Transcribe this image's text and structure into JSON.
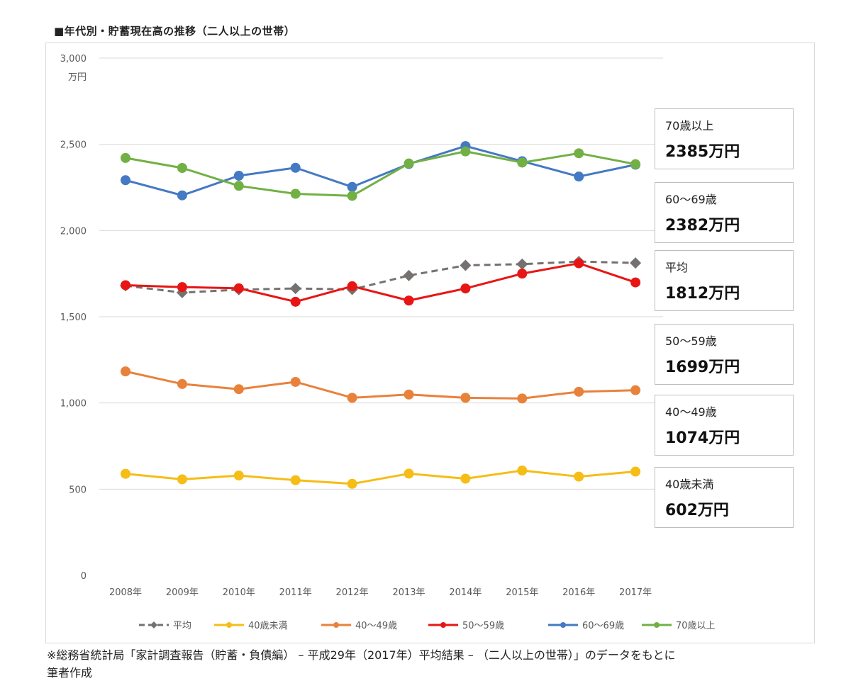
{
  "title": "■年代別・貯蓄現在高の推移（二人以上の世帯）",
  "chart_data": {
    "type": "line",
    "title": "■年代別・貯蓄現在高の推移（二人以上の世帯）",
    "ylabel": "万円",
    "ylim": [
      0,
      3000
    ],
    "yticks": [
      "0",
      "500",
      "1,000",
      "1,500",
      "2,000",
      "2,500",
      "3,000"
    ],
    "ytick_values": [
      0,
      500,
      1000,
      1500,
      2000,
      2500,
      3000
    ],
    "categories": [
      "2008年",
      "2009年",
      "2010年",
      "2011年",
      "2012年",
      "2013年",
      "2014年",
      "2015年",
      "2016年",
      "2017年"
    ],
    "grid": true,
    "legend_position": "bottom",
    "series": [
      {
        "name": "平均",
        "color": "#767171",
        "dashed": true,
        "marker": "diamond",
        "values": [
          1680,
          1640,
          1657,
          1664,
          1658,
          1739,
          1798,
          1805,
          1820,
          1812
        ]
      },
      {
        "name": "40歳未満",
        "color": "#f5bd16",
        "dashed": false,
        "marker": "circle",
        "values": [
          589,
          557,
          579,
          552,
          531,
          590,
          561,
          608,
          573,
          602
        ]
      },
      {
        "name": "40～49歳",
        "color": "#e8823b",
        "dashed": false,
        "marker": "circle",
        "values": [
          1183,
          1110,
          1080,
          1122,
          1030,
          1049,
          1030,
          1026,
          1065,
          1074
        ]
      },
      {
        "name": "50～59歳",
        "color": "#e81515",
        "dashed": false,
        "marker": "circle",
        "values": [
          1683,
          1672,
          1665,
          1587,
          1677,
          1594,
          1664,
          1750,
          1810,
          1699
        ]
      },
      {
        "name": "60～69歳",
        "color": "#4479c4",
        "dashed": false,
        "marker": "circle",
        "values": [
          2292,
          2204,
          2318,
          2364,
          2253,
          2386,
          2490,
          2402,
          2313,
          2382
        ]
      },
      {
        "name": "70歳以上",
        "color": "#72b045",
        "dashed": false,
        "marker": "circle",
        "values": [
          2421,
          2363,
          2259,
          2213,
          2201,
          2389,
          2459,
          2394,
          2448,
          2385
        ]
      }
    ]
  },
  "callouts": [
    {
      "label": "70歳以上",
      "value": "2385万円"
    },
    {
      "label": "60～69歳",
      "value": "2382万円"
    },
    {
      "label": "平均",
      "value": "1812万円"
    },
    {
      "label": "50～59歳",
      "value": "1699万円"
    },
    {
      "label": "40～49歳",
      "value": "1074万円"
    },
    {
      "label": "40歳未満",
      "value": "602万円"
    }
  ],
  "footnote": {
    "line1": "※総務省統計局「家計調査報告（貯蓄・負債編） – 平成29年（2017年）平均結果 – （二人以上の世帯）」のデータをもとに",
    "line2": "筆者作成"
  }
}
